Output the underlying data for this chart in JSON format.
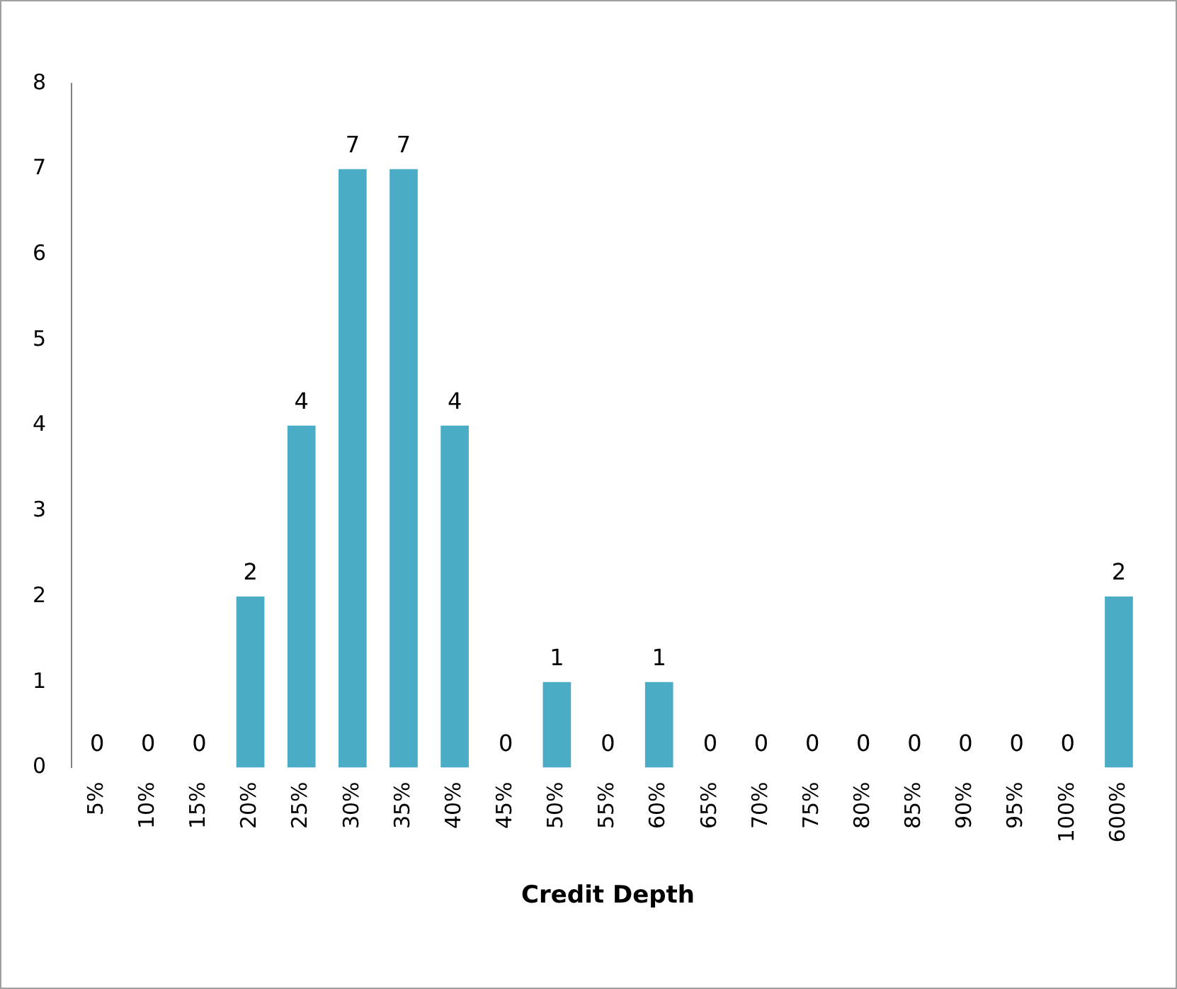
{
  "chart_data": {
    "type": "bar",
    "xlabel": "Credit Depth",
    "categories": [
      "5%",
      "10%",
      "15%",
      "20%",
      "25%",
      "30%",
      "35%",
      "40%",
      "45%",
      "50%",
      "55%",
      "60%",
      "65%",
      "70%",
      "75%",
      "80%",
      "85%",
      "90%",
      "95%",
      "100%",
      "600%"
    ],
    "values": [
      0,
      0,
      0,
      2,
      4,
      7,
      7,
      4,
      0,
      1,
      0,
      1,
      0,
      0,
      0,
      0,
      0,
      0,
      0,
      0,
      2
    ],
    "color": "#4bacc6",
    "ylim": [
      0,
      8
    ],
    "yticks": [
      0,
      1,
      2,
      3,
      4,
      5,
      6,
      7,
      8
    ],
    "grid": false,
    "legend": false,
    "data_labels": true
  }
}
